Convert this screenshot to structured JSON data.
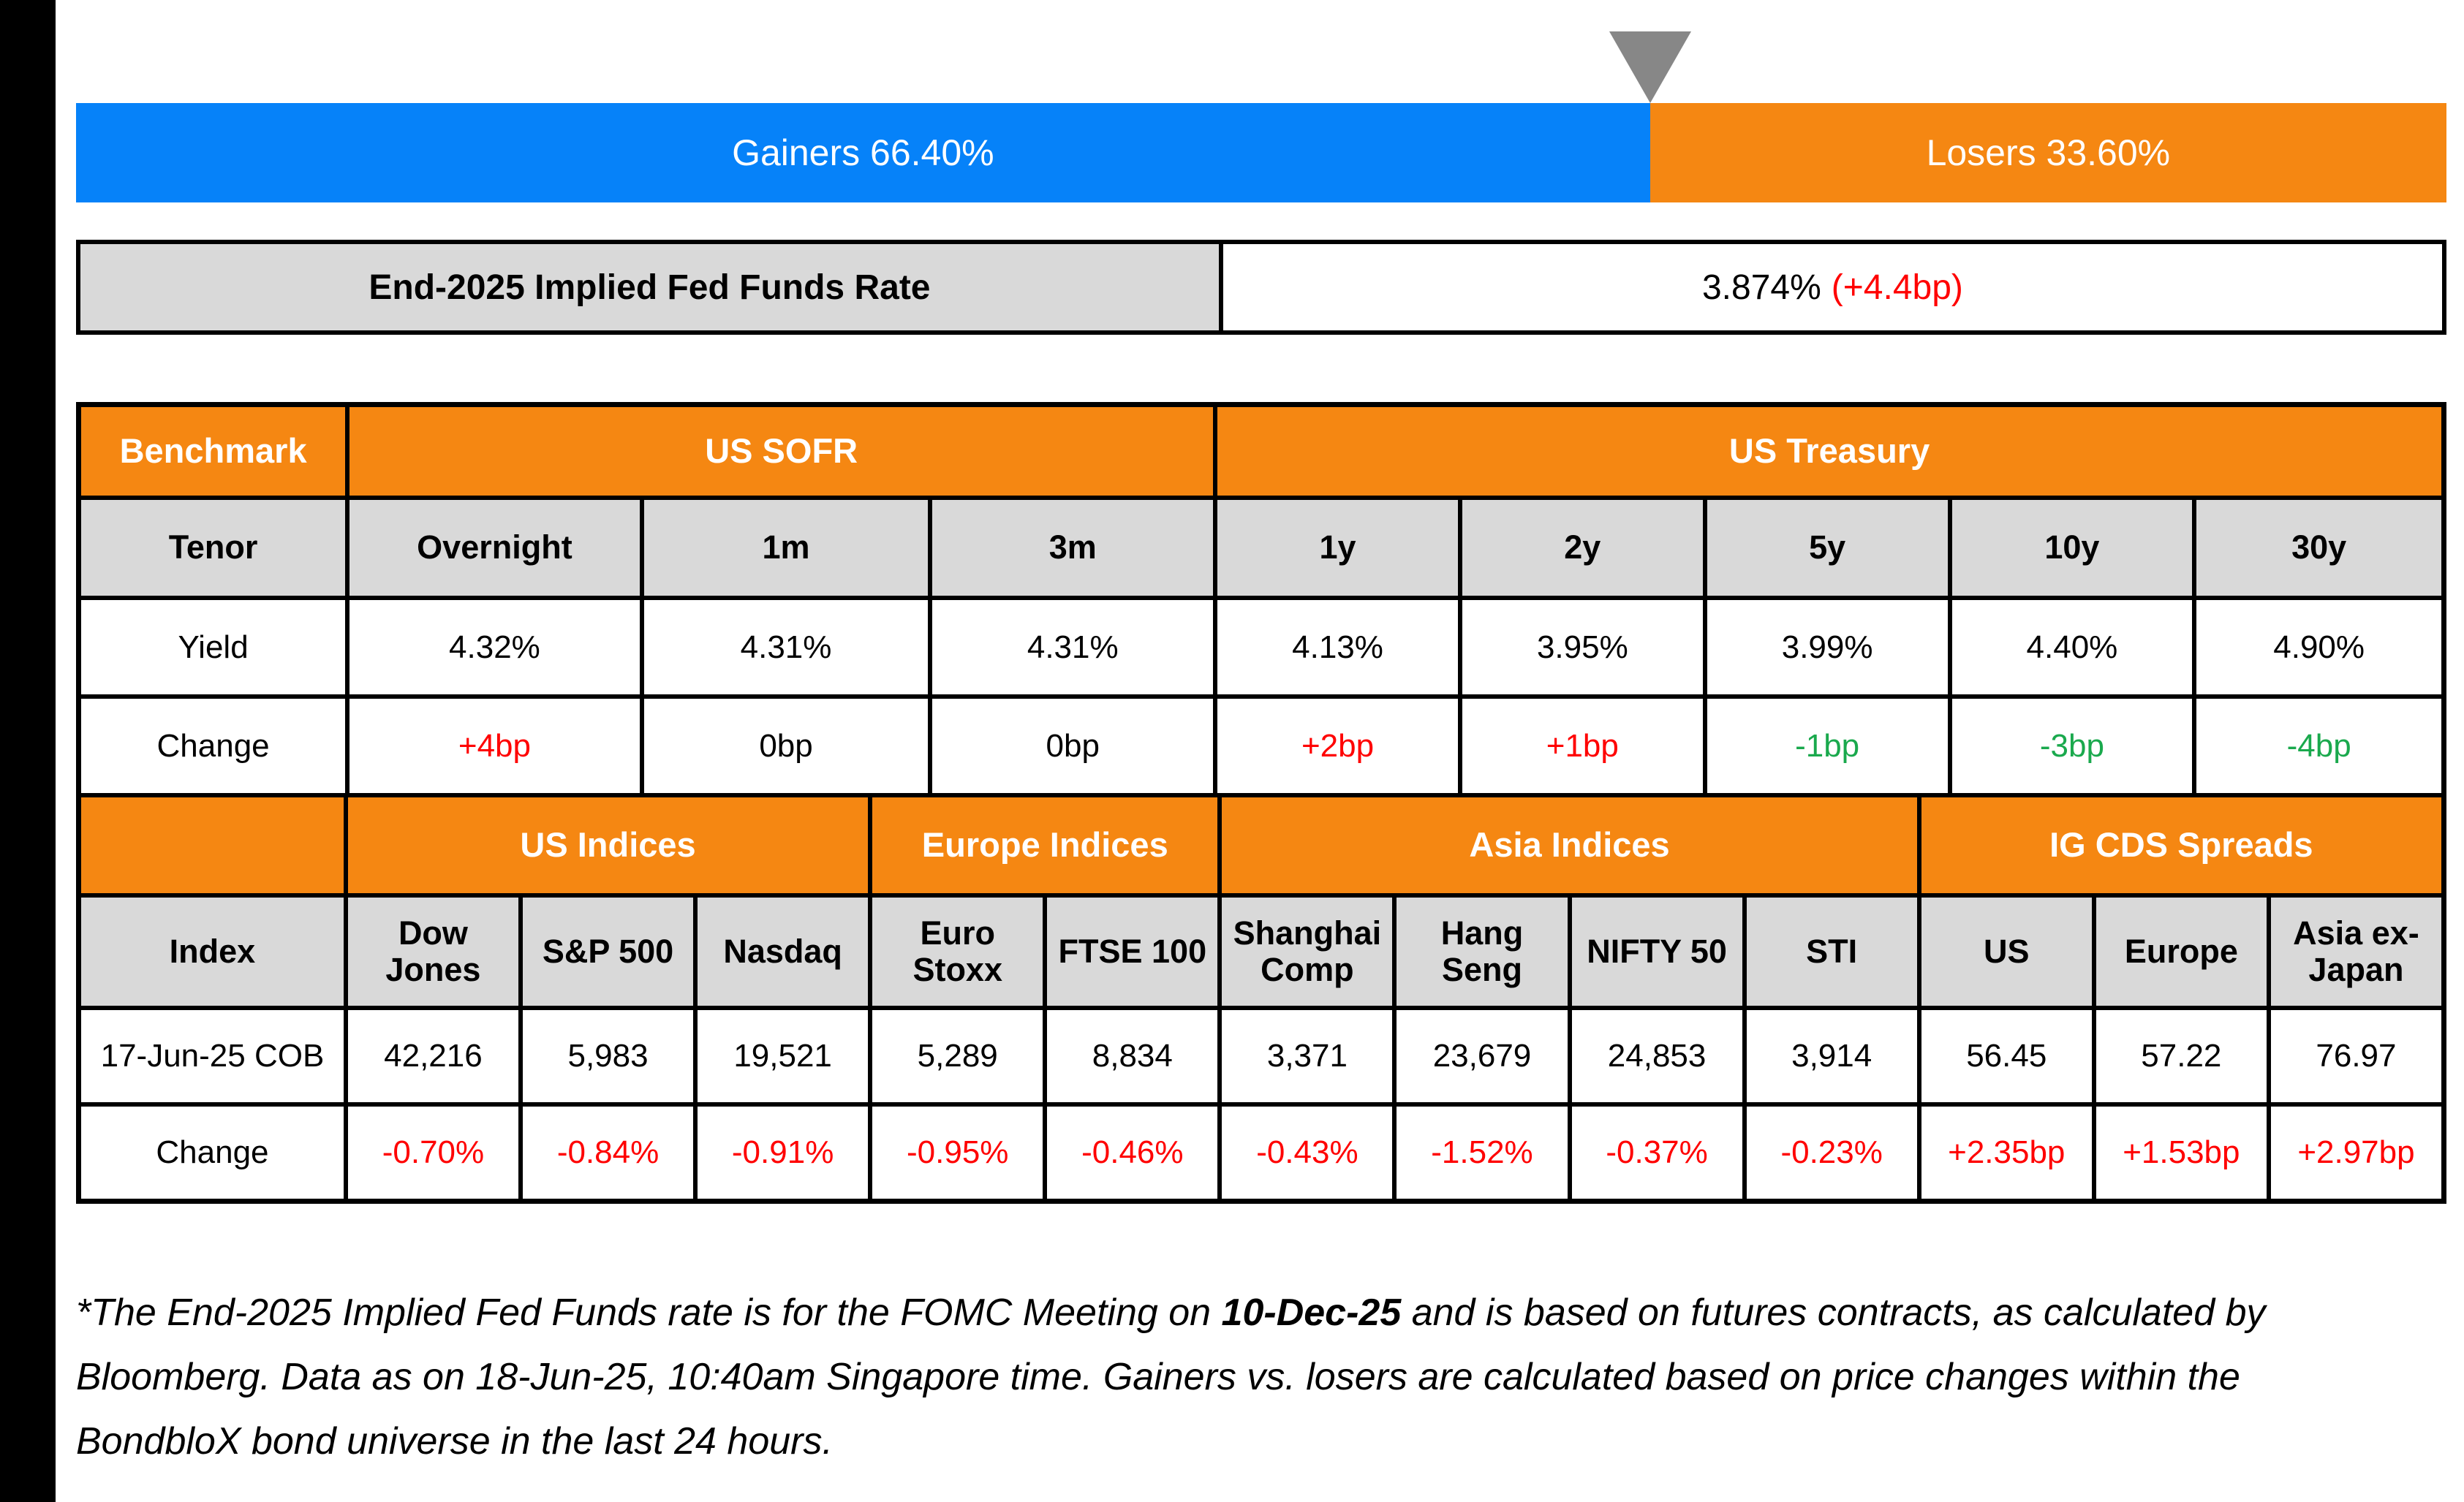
{
  "chart_data": [
    {
      "type": "bar",
      "title": "Gainers vs Losers (BondbloX bond universe, last 24 hours)",
      "orientation": "horizontal-stacked",
      "categories": [
        "Gainers",
        "Losers"
      ],
      "values": [
        66.4,
        33.6
      ],
      "unit": "%",
      "colors": [
        "#0682F9",
        "#F58712"
      ],
      "annotations": [
        "Gainers 66.40%",
        "Losers 33.60%"
      ],
      "marker": "gray triangle pointing at 66.4% split"
    },
    {
      "type": "table",
      "title": "Benchmark",
      "column_groups": [
        "US SOFR (Overnight, 1m, 3m)",
        "US Treasury (1y, 2y, 5y, 10y, 30y)"
      ],
      "columns": [
        "Overnight",
        "1m",
        "3m",
        "1y",
        "2y",
        "5y",
        "10y",
        "30y"
      ],
      "rows": [
        {
          "label": "Yield",
          "values": [
            "4.32%",
            "4.31%",
            "4.31%",
            "4.13%",
            "3.95%",
            "3.99%",
            "4.40%",
            "4.90%"
          ]
        },
        {
          "label": "Change",
          "values": [
            "+4bp",
            "0bp",
            "0bp",
            "+2bp",
            "+1bp",
            "-1bp",
            "-3bp",
            "-4bp"
          ]
        }
      ]
    },
    {
      "type": "table",
      "title": "Indices and IG CDS Spreads",
      "column_groups": [
        "US Indices (Dow Jones, S&P 500, Nasdaq)",
        "Europe Indices (Euro Stoxx, FTSE 100)",
        "Asia Indices (Shanghai Comp, Hang Seng, NIFTY 50, STI)",
        "IG CDS Spreads (US, Europe, Asia ex-Japan)"
      ],
      "columns": [
        "Dow Jones",
        "S&P 500",
        "Nasdaq",
        "Euro Stoxx",
        "FTSE 100",
        "Shanghai Comp",
        "Hang Seng",
        "NIFTY 50",
        "STI",
        "US",
        "Europe",
        "Asia ex-Japan"
      ],
      "rows": [
        {
          "label": "17-Jun-25 COB",
          "values": [
            "42,216",
            "5,983",
            "19,521",
            "5,289",
            "8,834",
            "3,371",
            "23,679",
            "24,853",
            "3,914",
            "56.45",
            "57.22",
            "76.97"
          ]
        },
        {
          "label": "Change",
          "values": [
            "-0.70%",
            "-0.84%",
            "-0.91%",
            "-0.95%",
            "-0.46%",
            "-0.43%",
            "-1.52%",
            "-0.37%",
            "-0.23%",
            "+2.35bp",
            "+1.53bp",
            "+2.97bp"
          ]
        }
      ]
    }
  ],
  "gainers_losers": {
    "gainers_label": "Gainers 66.40%",
    "losers_label": "Losers 33.60%",
    "gainers_pct": 66.4,
    "losers_pct": 33.6
  },
  "fed_funds": {
    "label": "End-2025 Implied Fed Funds Rate",
    "value": "3.874%",
    "change": "(+4.4bp)"
  },
  "benchmark_table": {
    "corner_label": "Benchmark",
    "groups": [
      {
        "label": "US SOFR",
        "span": 3
      },
      {
        "label": "US Treasury",
        "span": 5
      }
    ],
    "tenor_row_label": "Tenor",
    "yield_row_label": "Yield",
    "change_row_label": "Change",
    "columns": [
      {
        "tenor": "Overnight",
        "yield": "4.32%",
        "change": "+4bp",
        "change_dir": "up"
      },
      {
        "tenor": "1m",
        "yield": "4.31%",
        "change": "0bp",
        "change_dir": "flat"
      },
      {
        "tenor": "3m",
        "yield": "4.31%",
        "change": "0bp",
        "change_dir": "flat"
      },
      {
        "tenor": "1y",
        "yield": "4.13%",
        "change": "+2bp",
        "change_dir": "up"
      },
      {
        "tenor": "2y",
        "yield": "3.95%",
        "change": "+1bp",
        "change_dir": "up"
      },
      {
        "tenor": "5y",
        "yield": "3.99%",
        "change": "-1bp",
        "change_dir": "down"
      },
      {
        "tenor": "10y",
        "yield": "4.40%",
        "change": "-3bp",
        "change_dir": "down"
      },
      {
        "tenor": "30y",
        "yield": "4.90%",
        "change": "-4bp",
        "change_dir": "down"
      }
    ]
  },
  "indices_table": {
    "groups": [
      {
        "label": "US Indices",
        "span": 3
      },
      {
        "label": "Europe Indices",
        "span": 2
      },
      {
        "label": "Asia Indices",
        "span": 4
      },
      {
        "label": "IG CDS Spreads",
        "span": 3
      }
    ],
    "index_row_label": "Index",
    "cob_row_label": "17-Jun-25 COB",
    "change_row_label": "Change",
    "columns": [
      {
        "name": "Dow Jones",
        "cob": "42,216",
        "change": "-0.70%"
      },
      {
        "name": "S&P 500",
        "cob": "5,983",
        "change": "-0.84%"
      },
      {
        "name": "Nasdaq",
        "cob": "19,521",
        "change": "-0.91%"
      },
      {
        "name": "Euro Stoxx",
        "cob": "5,289",
        "change": "-0.95%"
      },
      {
        "name": "FTSE 100",
        "cob": "8,834",
        "change": "-0.46%"
      },
      {
        "name": "Shanghai Comp",
        "cob": "3,371",
        "change": "-0.43%"
      },
      {
        "name": "Hang Seng",
        "cob": "23,679",
        "change": "-1.52%"
      },
      {
        "name": "NIFTY 50",
        "cob": "24,853",
        "change": "-0.37%"
      },
      {
        "name": "STI",
        "cob": "3,914",
        "change": "-0.23%"
      },
      {
        "name": "US",
        "cob": "56.45",
        "change": "+2.35bp"
      },
      {
        "name": "Europe",
        "cob": "57.22",
        "change": "+1.53bp"
      },
      {
        "name": "Asia ex-Japan",
        "cob": "76.97",
        "change": "+2.97bp"
      }
    ]
  },
  "footnote": {
    "line1_pre": "*The End-2025 Implied Fed Funds rate is for the FOMC Meeting on ",
    "line1_bold": "10-Dec-25",
    "line1_post": " and is based on futures contracts, as calculated by",
    "line2": "Bloomberg. Data as on 18-Jun-25, 10:40am Singapore time. Gainers vs. losers are calculated based on price changes within the",
    "line3": "BondbloX bond universe in the last 24 hours."
  },
  "colors": {
    "gainers_blue": "#0682F9",
    "losers_orange": "#F58712",
    "header_orange": "#F58712",
    "header_gray": "#D9D9D9",
    "positive_red": "#FF0000",
    "negative_green": "#1AA94D",
    "marker_gray": "#878787"
  }
}
